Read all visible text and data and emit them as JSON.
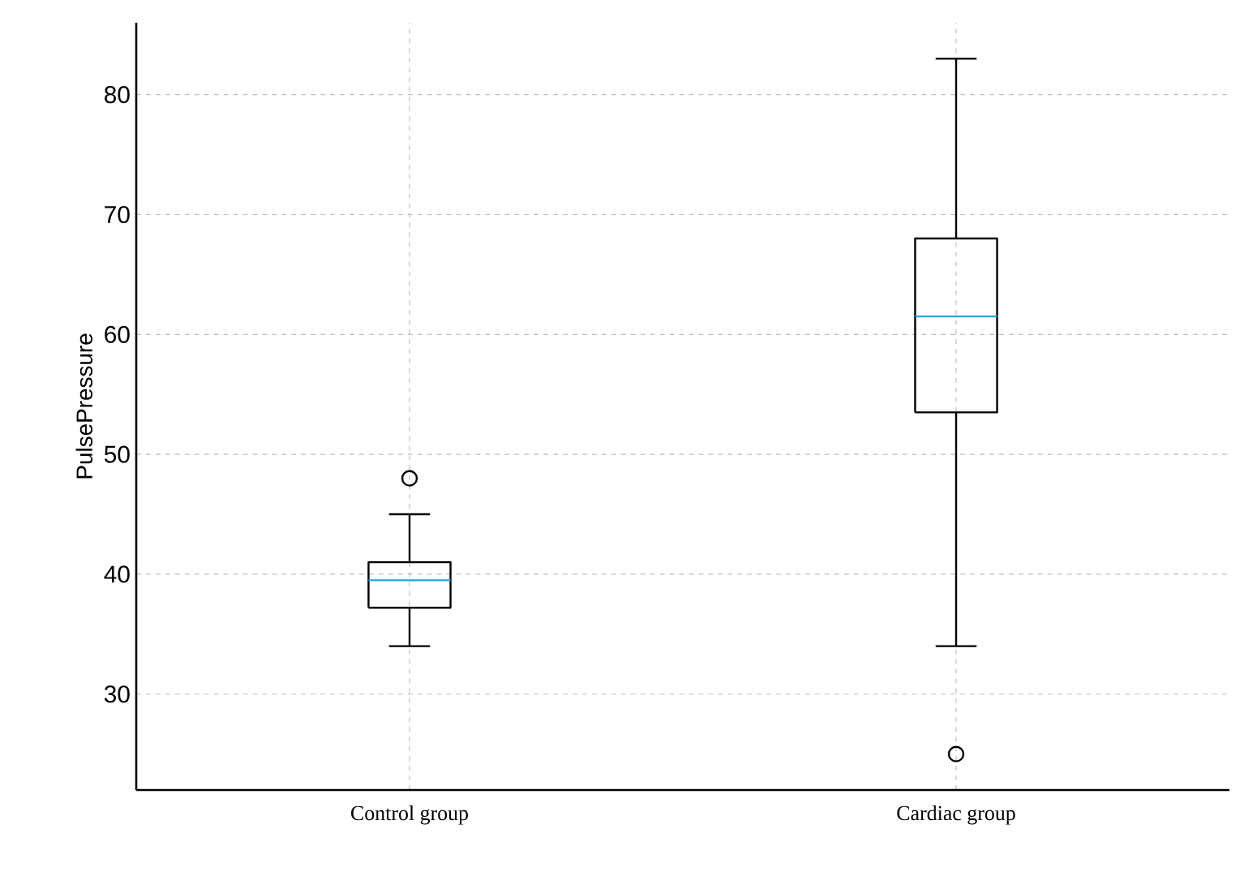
{
  "chart_data": {
    "type": "box",
    "ylabel": "PulsePressure",
    "categories": [
      "Control group",
      "Cardiac group"
    ],
    "color": "#000000",
    "boxes": [
      {
        "low": 34,
        "q1": 37.2,
        "median": 39.5,
        "q3": 41,
        "high": 45,
        "outliers": [
          48
        ]
      },
      {
        "low": 34,
        "q1": 53.5,
        "median": 61.5,
        "q3": 68,
        "high": 83,
        "outliers": [
          25
        ]
      }
    ],
    "ylim": [
      22,
      86
    ],
    "yticks": [
      30,
      40,
      50,
      60,
      70,
      80
    ],
    "grid": true
  }
}
